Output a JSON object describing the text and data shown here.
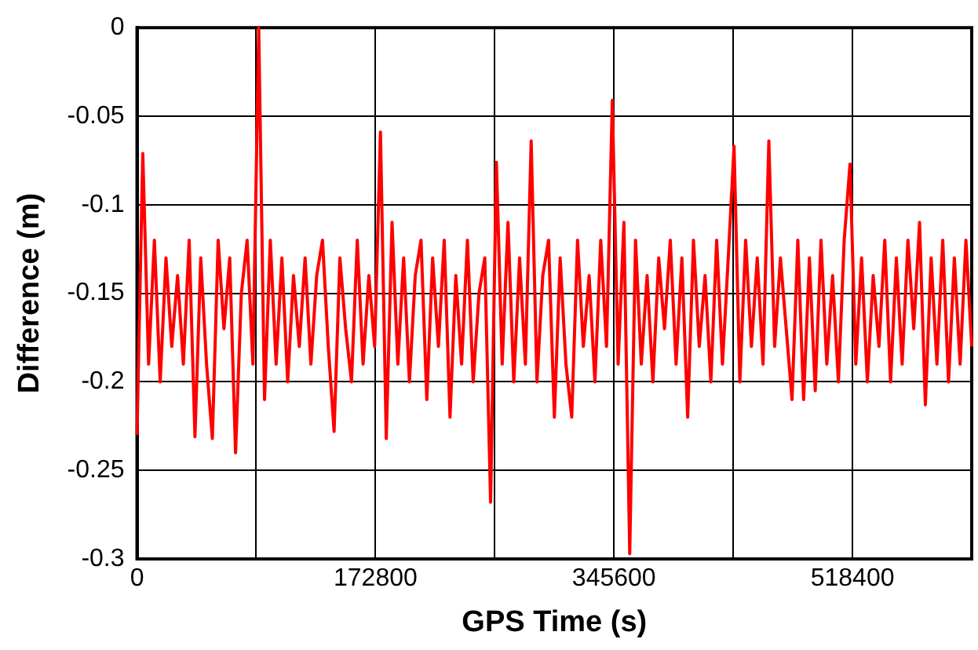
{
  "chart_data": {
    "type": "line",
    "xlabel": "GPS Time (s)",
    "ylabel": "Difference (m)",
    "x": [
      0,
      4200,
      8400,
      12600,
      16800,
      21000,
      25200,
      29400,
      33600,
      37800,
      42000,
      46200,
      50400,
      54600,
      58800,
      63000,
      67200,
      71400,
      75600,
      79800,
      84000,
      88200,
      92400,
      96600,
      100800,
      105000,
      109200,
      113400,
      117600,
      121800,
      126000,
      130200,
      134400,
      138600,
      142800,
      147000,
      151200,
      155400,
      159600,
      163800,
      168000,
      172200,
      176400,
      180600,
      184800,
      189000,
      193200,
      197400,
      201600,
      205800,
      210000,
      214200,
      218400,
      222600,
      226800,
      231000,
      235200,
      239400,
      243600,
      247800,
      252000,
      256200,
      260400,
      264600,
      268800,
      273000,
      277200,
      281400,
      285600,
      289800,
      294000,
      298200,
      302400,
      306600,
      310800,
      315000,
      319200,
      323400,
      327600,
      331800,
      336000,
      340200,
      344400,
      348600,
      352800,
      357000,
      361200,
      365400,
      369600,
      373800,
      378000,
      382200,
      386400,
      390600,
      394800,
      399000,
      403200,
      407400,
      411600,
      415800,
      420000,
      424200,
      428400,
      432600,
      436800,
      441000,
      445200,
      449400,
      453600,
      457800,
      462000,
      466200,
      470400,
      474600,
      478800,
      483000,
      487200,
      491400,
      495600,
      499800,
      504000,
      508200,
      512400,
      516600,
      520800,
      525000,
      529200,
      533400,
      537600,
      541800,
      546000,
      550200,
      554400,
      558600,
      562800,
      567000,
      571200,
      575400,
      579600,
      583800,
      588000,
      592200,
      596400,
      600600,
      604800
    ],
    "series": [
      {
        "color": "#ff0000",
        "values": [
          -0.23,
          -0.071,
          -0.19,
          -0.12,
          -0.2,
          -0.13,
          -0.18,
          -0.14,
          -0.19,
          -0.12,
          -0.231,
          -0.13,
          -0.19,
          -0.232,
          -0.12,
          -0.17,
          -0.13,
          -0.24,
          -0.15,
          -0.12,
          -0.19,
          0,
          -0.21,
          -0.12,
          -0.19,
          -0.13,
          -0.2,
          -0.14,
          -0.18,
          -0.13,
          -0.19,
          -0.14,
          -0.12,
          -0.18,
          -0.228,
          -0.13,
          -0.17,
          -0.2,
          -0.12,
          -0.19,
          -0.14,
          -0.18,
          -0.059,
          -0.232,
          -0.11,
          -0.19,
          -0.13,
          -0.2,
          -0.14,
          -0.12,
          -0.21,
          -0.13,
          -0.18,
          -0.12,
          -0.22,
          -0.14,
          -0.19,
          -0.12,
          -0.2,
          -0.15,
          -0.13,
          -0.268,
          -0.076,
          -0.19,
          -0.11,
          -0.2,
          -0.13,
          -0.19,
          -0.064,
          -0.2,
          -0.14,
          -0.12,
          -0.22,
          -0.13,
          -0.19,
          -0.22,
          -0.12,
          -0.18,
          -0.14,
          -0.2,
          -0.12,
          -0.18,
          -0.041,
          -0.19,
          -0.11,
          -0.297,
          -0.12,
          -0.19,
          -0.14,
          -0.2,
          -0.13,
          -0.17,
          -0.12,
          -0.19,
          -0.13,
          -0.22,
          -0.12,
          -0.18,
          -0.14,
          -0.2,
          -0.12,
          -0.19,
          -0.13,
          -0.067,
          -0.2,
          -0.12,
          -0.18,
          -0.13,
          -0.19,
          -0.064,
          -0.18,
          -0.13,
          -0.17,
          -0.21,
          -0.12,
          -0.21,
          -0.13,
          -0.205,
          -0.12,
          -0.19,
          -0.14,
          -0.2,
          -0.12,
          -0.077,
          -0.19,
          -0.13,
          -0.2,
          -0.14,
          -0.18,
          -0.12,
          -0.2,
          -0.13,
          -0.19,
          -0.12,
          -0.17,
          -0.11,
          -0.213,
          -0.13,
          -0.19,
          -0.12,
          -0.2,
          -0.13,
          -0.19,
          -0.12,
          -0.18
        ]
      }
    ],
    "xlim": [
      0,
      604800
    ],
    "xticks": [
      0,
      {
        "value": 86400,
        "label": null
      },
      172800,
      {
        "value": 259200,
        "label": null
      },
      345600,
      {
        "value": 432000,
        "label": null
      },
      518400
    ],
    "ylim": [
      -0.3,
      0
    ],
    "yticks": [
      -0.3,
      -0.25,
      -0.2,
      -0.15,
      -0.1,
      -0.05,
      0
    ],
    "grid": true,
    "legend": false
  }
}
